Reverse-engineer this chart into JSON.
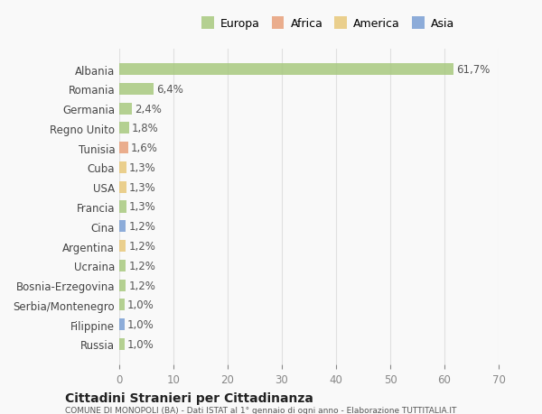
{
  "countries": [
    "Albania",
    "Romania",
    "Germania",
    "Regno Unito",
    "Tunisia",
    "Cuba",
    "USA",
    "Francia",
    "Cina",
    "Argentina",
    "Ucraina",
    "Bosnia-Erzegovina",
    "Serbia/Montenegro",
    "Filippine",
    "Russia"
  ],
  "values": [
    61.7,
    6.4,
    2.4,
    1.8,
    1.6,
    1.3,
    1.3,
    1.3,
    1.2,
    1.2,
    1.2,
    1.2,
    1.0,
    1.0,
    1.0
  ],
  "continents": [
    "Europa",
    "Europa",
    "Europa",
    "Europa",
    "Africa",
    "America",
    "America",
    "Europa",
    "Asia",
    "America",
    "Europa",
    "Europa",
    "Europa",
    "Asia",
    "Europa"
  ],
  "labels": [
    "61,7%",
    "6,4%",
    "2,4%",
    "1,8%",
    "1,6%",
    "1,3%",
    "1,3%",
    "1,3%",
    "1,2%",
    "1,2%",
    "1,2%",
    "1,2%",
    "1,0%",
    "1,0%",
    "1,0%"
  ],
  "continent_colors": {
    "Europa": "#a8c97f",
    "Africa": "#e8a07a",
    "America": "#e8c87a",
    "Asia": "#7a9fd4"
  },
  "legend_items": [
    "Europa",
    "Africa",
    "America",
    "Asia"
  ],
  "title": "Cittadini Stranieri per Cittadinanza",
  "subtitle": "COMUNE DI MONOPOLI (BA) - Dati ISTAT al 1° gennaio di ogni anno - Elaborazione TUTTITALIA.IT",
  "xlim": [
    0,
    70
  ],
  "xticks": [
    0,
    10,
    20,
    30,
    40,
    50,
    60,
    70
  ],
  "bg_color": "#f9f9f9",
  "grid_color": "#e0e0e0"
}
